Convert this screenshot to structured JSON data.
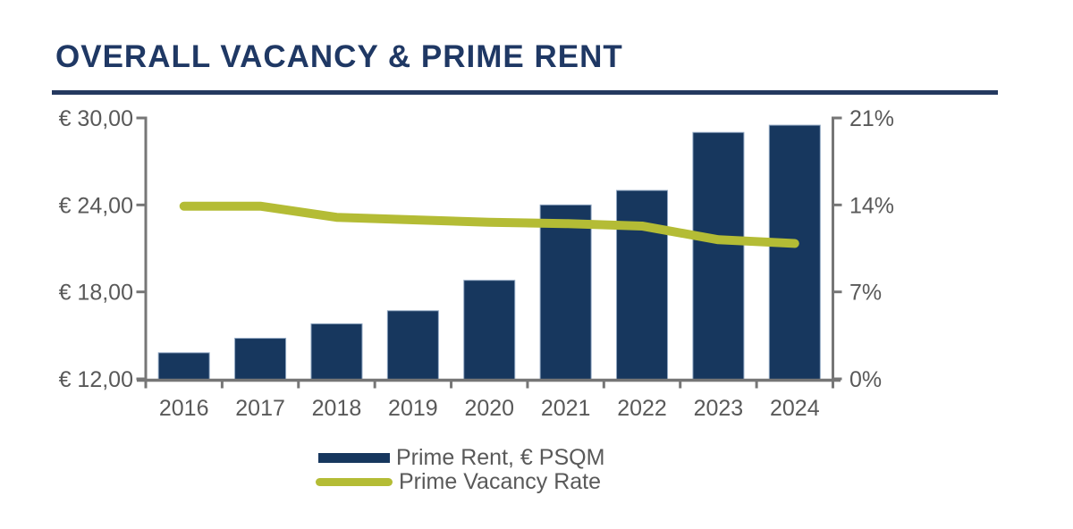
{
  "header": {
    "title": "OVERALL VACANCY & PRIME RENT"
  },
  "colors": {
    "title": "#1F3864",
    "rule": "#24395F",
    "bar": "#17375E",
    "bar_edge": "#8FA6C1",
    "line": "#B4BC35",
    "axis": "#767676",
    "text": "#595959"
  },
  "legend": {
    "items": [
      {
        "label": "Prime Rent, € PSQM",
        "swatch": "bar"
      },
      {
        "label": "Prime Vacancy Rate",
        "swatch": "line"
      }
    ]
  },
  "chart_data": {
    "type": "bar+line",
    "title": "OVERALL VACANCY & PRIME RENT",
    "categories": [
      "2016",
      "2017",
      "2018",
      "2019",
      "2020",
      "2021",
      "2022",
      "2023",
      "2024"
    ],
    "series": [
      {
        "name": "Prime Rent, € PSQM",
        "type": "bar",
        "axis": "left",
        "values": [
          13.8,
          14.8,
          15.8,
          16.7,
          18.8,
          24.0,
          25.0,
          29.0,
          29.5
        ]
      },
      {
        "name": "Prime Vacancy Rate",
        "type": "line",
        "axis": "right",
        "values": [
          13.9,
          13.9,
          13.0,
          12.8,
          12.6,
          12.5,
          12.3,
          11.2,
          10.9
        ]
      }
    ],
    "left_axis": {
      "unit": "EUR per sqm",
      "min": 12,
      "max": 30,
      "ticks": [
        {
          "value": 30,
          "label": "€ 30,00"
        },
        {
          "value": 24,
          "label": "€ 24,00"
        },
        {
          "value": 18,
          "label": "€ 18,00"
        },
        {
          "value": 12,
          "label": "€ 12,00"
        }
      ]
    },
    "right_axis": {
      "unit": "percent",
      "min": 0,
      "max": 21,
      "ticks": [
        {
          "value": 21,
          "label": "21%"
        },
        {
          "value": 14,
          "label": "14%"
        },
        {
          "value": 7,
          "label": "7%"
        },
        {
          "value": 0,
          "label": "0%"
        }
      ]
    },
    "grid": false,
    "legend_position": "bottom"
  }
}
